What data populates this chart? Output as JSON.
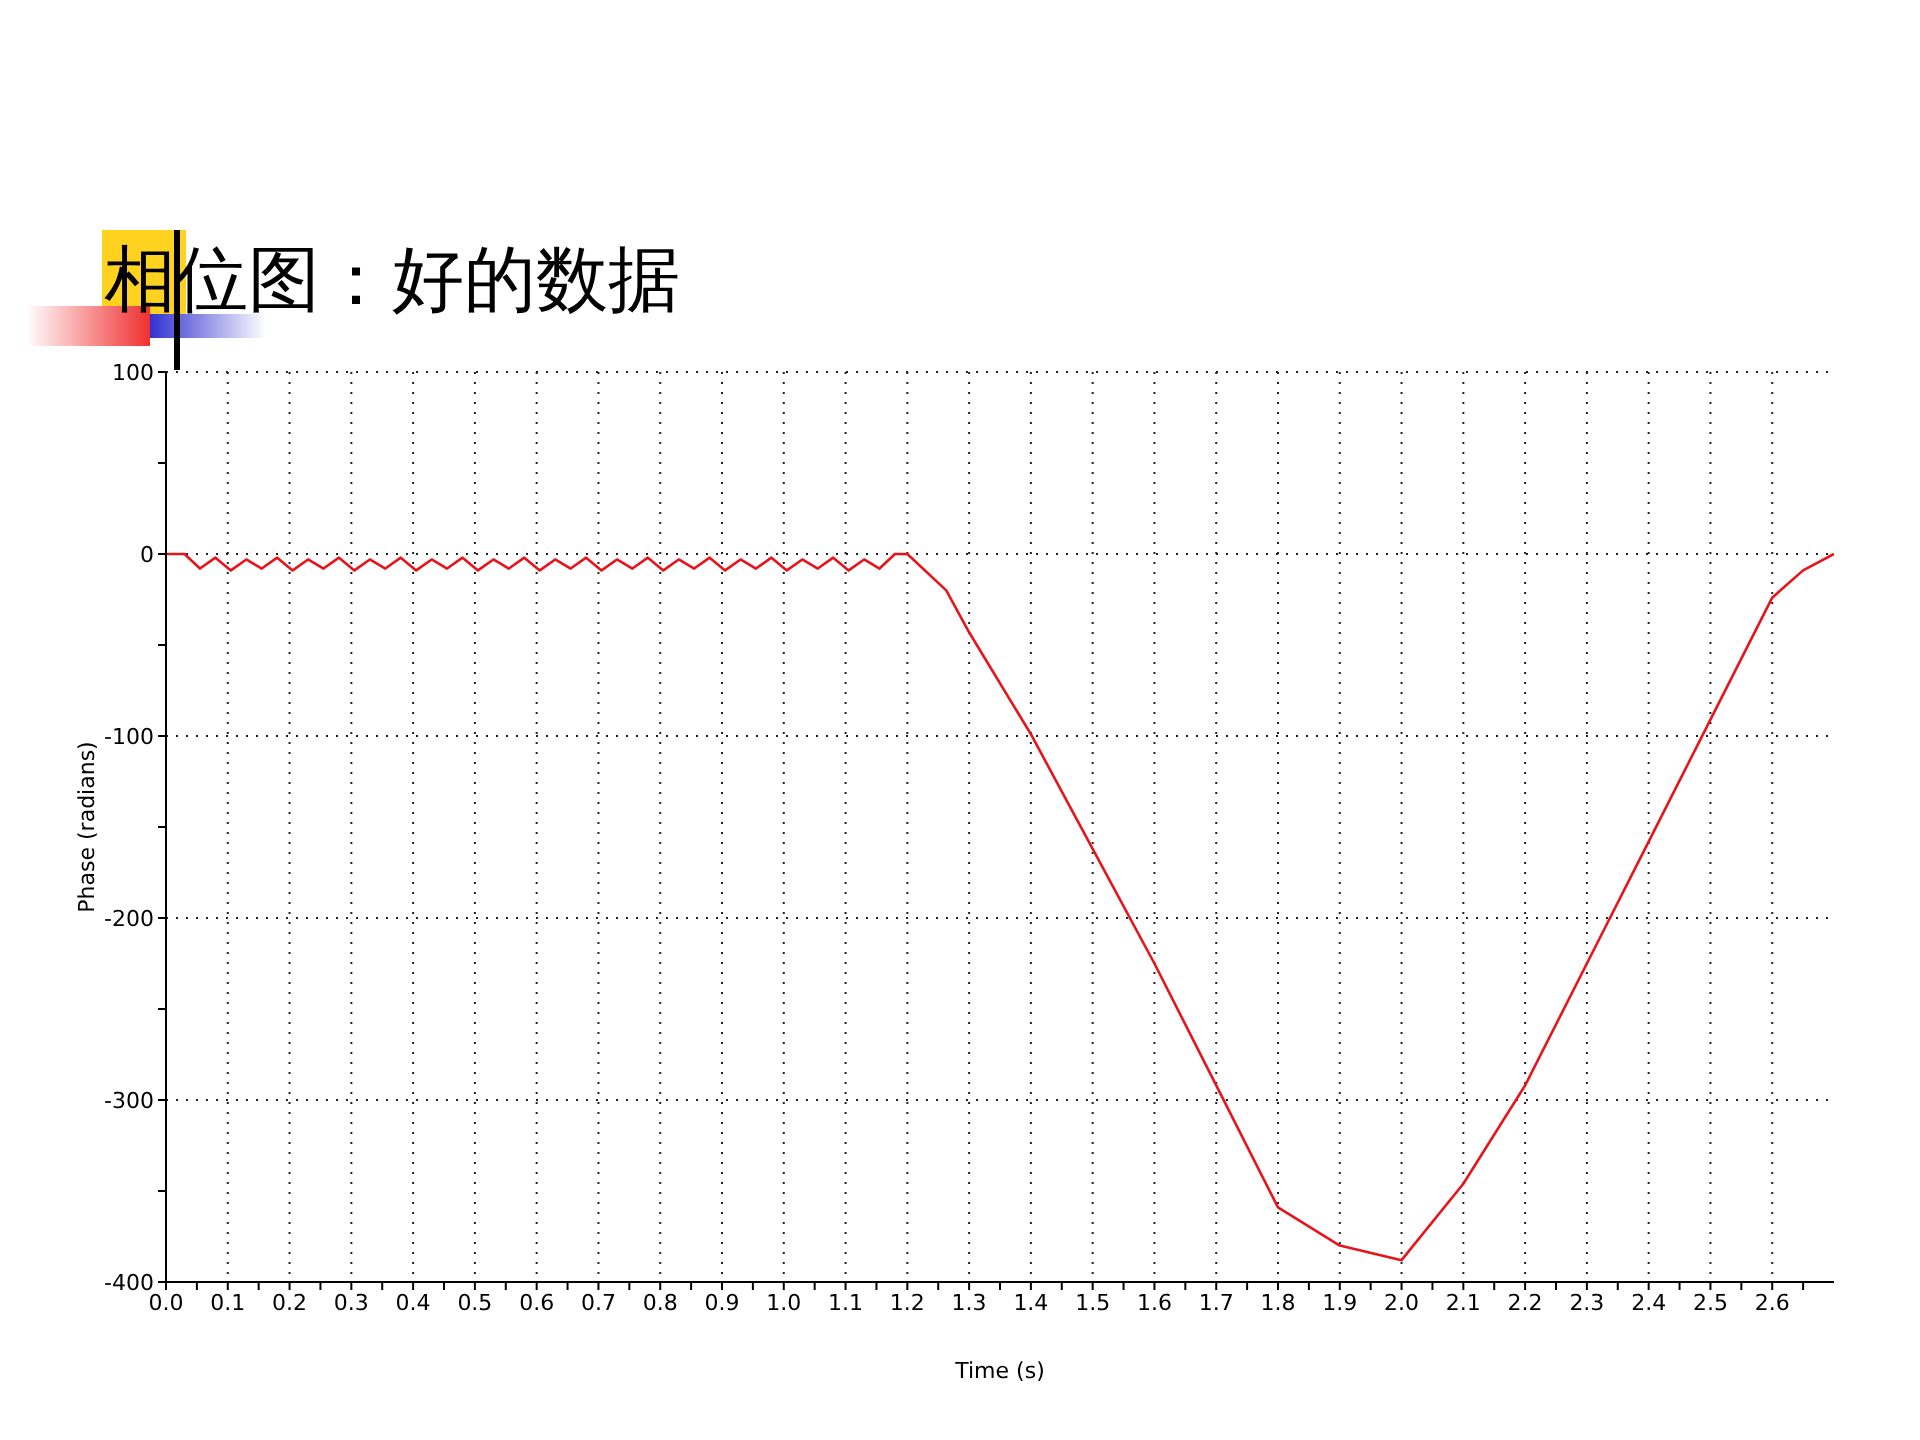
{
  "chart_data": {
    "type": "line",
    "title": "相位图：好的数据",
    "xlabel": "Time (s)",
    "ylabel": "Phase (radians)",
    "xlim": [
      0,
      2.7
    ],
    "ylim": [
      -400,
      100
    ],
    "xticks": [
      {
        "value": 0,
        "label": "0.0"
      },
      {
        "value": 0.05,
        "label": null
      },
      {
        "value": 0.1,
        "label": "0.1"
      },
      {
        "value": 0.15,
        "label": null
      },
      {
        "value": 0.2,
        "label": "0.2"
      },
      {
        "value": 0.25,
        "label": null
      },
      {
        "value": 0.3,
        "label": "0.3"
      },
      {
        "value": 0.35,
        "label": null
      },
      {
        "value": 0.4,
        "label": "0.4"
      },
      {
        "value": 0.45,
        "label": null
      },
      {
        "value": 0.5,
        "label": "0.5"
      },
      {
        "value": 0.55,
        "label": null
      },
      {
        "value": 0.6,
        "label": "0.6"
      },
      {
        "value": 0.65,
        "label": null
      },
      {
        "value": 0.7,
        "label": "0.7"
      },
      {
        "value": 0.75,
        "label": null
      },
      {
        "value": 0.8,
        "label": "0.8"
      },
      {
        "value": 0.85,
        "label": null
      },
      {
        "value": 0.9,
        "label": "0.9"
      },
      {
        "value": 0.95,
        "label": null
      },
      {
        "value": 1,
        "label": "1.0"
      },
      {
        "value": 1.05,
        "label": null
      },
      {
        "value": 1.1,
        "label": "1.1"
      },
      {
        "value": 1.15,
        "label": null
      },
      {
        "value": 1.2,
        "label": "1.2"
      },
      {
        "value": 1.25,
        "label": null
      },
      {
        "value": 1.3,
        "label": "1.3"
      },
      {
        "value": 1.35,
        "label": null
      },
      {
        "value": 1.4,
        "label": "1.4"
      },
      {
        "value": 1.45,
        "label": null
      },
      {
        "value": 1.5,
        "label": "1.5"
      },
      {
        "value": 1.55,
        "label": null
      },
      {
        "value": 1.6,
        "label": "1.6"
      },
      {
        "value": 1.65,
        "label": null
      },
      {
        "value": 1.7,
        "label": "1.7"
      },
      {
        "value": 1.75,
        "label": null
      },
      {
        "value": 1.8,
        "label": "1.8"
      },
      {
        "value": 1.85,
        "label": null
      },
      {
        "value": 1.9,
        "label": "1.9"
      },
      {
        "value": 1.95,
        "label": null
      },
      {
        "value": 2,
        "label": "2.0"
      },
      {
        "value": 2.05,
        "label": null
      },
      {
        "value": 2.1,
        "label": "2.1"
      },
      {
        "value": 2.15,
        "label": null
      },
      {
        "value": 2.2,
        "label": "2.2"
      },
      {
        "value": 2.25,
        "label": null
      },
      {
        "value": 2.3,
        "label": "2.3"
      },
      {
        "value": 2.35,
        "label": null
      },
      {
        "value": 2.4,
        "label": "2.4"
      },
      {
        "value": 2.45,
        "label": null
      },
      {
        "value": 2.5,
        "label": "2.5"
      },
      {
        "value": 2.55,
        "label": null
      },
      {
        "value": 2.6,
        "label": "2.6"
      },
      {
        "value": 2.65,
        "label": null
      }
    ],
    "yticks": [
      -400,
      {
        "value": -350,
        "label": null
      },
      -300,
      {
        "value": -250,
        "label": null
      },
      -200,
      {
        "value": -150,
        "label": null
      },
      -100,
      {
        "value": -50,
        "label": null
      },
      0,
      {
        "value": 50,
        "label": null
      },
      100
    ],
    "grid": true,
    "legend": false,
    "marker": "none",
    "line_style": "solid",
    "series": [
      {
        "color": "#e8141b",
        "x": [
          0,
          0.03,
          0.055,
          0.08,
          0.105,
          0.13,
          0.155,
          0.18,
          0.205,
          0.23,
          0.255,
          0.28,
          0.305,
          0.33,
          0.355,
          0.38,
          0.405,
          0.43,
          0.455,
          0.48,
          0.505,
          0.53,
          0.555,
          0.58,
          0.605,
          0.63,
          0.655,
          0.68,
          0.705,
          0.73,
          0.755,
          0.78,
          0.805,
          0.83,
          0.855,
          0.88,
          0.905,
          0.93,
          0.955,
          0.98,
          1.005,
          1.03,
          1.055,
          1.08,
          1.105,
          1.13,
          1.155,
          1.18,
          1.2,
          1.263,
          1.3,
          1.4,
          1.5,
          1.6,
          1.7,
          1.8,
          1.9,
          2,
          2.1,
          2.2,
          2.3,
          2.4,
          2.5,
          2.6,
          2.65,
          2.7
        ],
        "values": [
          0,
          0,
          -8,
          -2,
          -9,
          -3,
          -8,
          -2,
          -9,
          -3,
          -8,
          -2,
          -9,
          -3,
          -8,
          -2,
          -9,
          -3,
          -8,
          -2,
          -9,
          -3,
          -8,
          -2,
          -9,
          -3,
          -8,
          -2,
          -9,
          -3,
          -8,
          -2,
          -9,
          -3,
          -8,
          -2,
          -9,
          -3,
          -8,
          -2,
          -9,
          -3,
          -8,
          -2,
          -9,
          -3,
          -8,
          0,
          0,
          -20,
          -43,
          -99,
          -162,
          -225,
          -292,
          -359,
          -380,
          -388,
          -346,
          -292,
          -225,
          -158,
          -91,
          -24,
          -9,
          0
        ]
      }
    ]
  }
}
